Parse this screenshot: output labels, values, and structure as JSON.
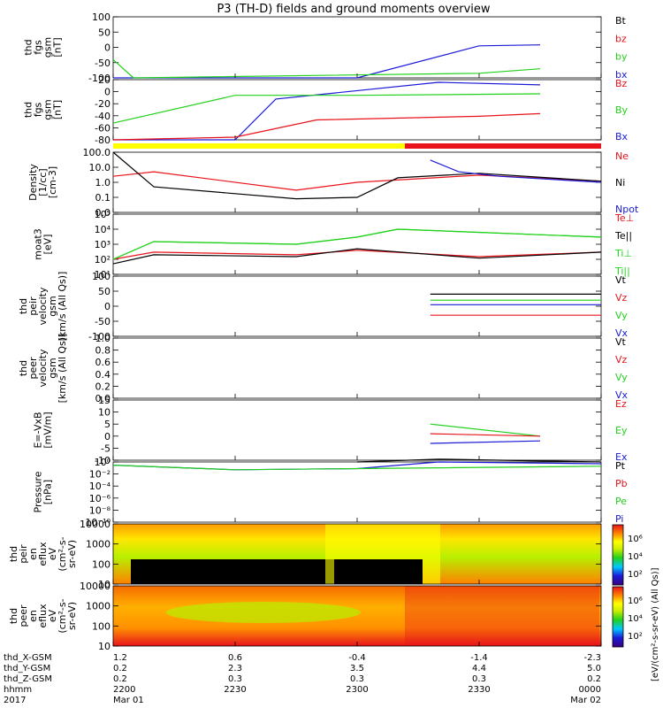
{
  "title": "P3 (TH-D) fields and ground moments overview",
  "colors": {
    "black": "#000000",
    "red": "#e8131b",
    "green": "#22d11c",
    "blue": "#1a1ad8",
    "yellow": "#ffff00"
  },
  "panels": [
    {
      "id": "fgs-gsm",
      "ylabel": [
        "thd",
        "fgs",
        "gsm",
        "[nT]"
      ],
      "ticks": [
        "100",
        "50",
        "0",
        "-50",
        "-100"
      ],
      "legend": [
        {
          "text": "Bt",
          "color": "black"
        },
        {
          "text": "bz",
          "color": "red"
        },
        {
          "text": "by",
          "color": "green"
        },
        {
          "text": "bx",
          "color": "blue"
        }
      ]
    },
    {
      "id": "fgs-dsl",
      "ylabel": [
        "thd",
        "fgs",
        "gsm",
        "[nT]"
      ],
      "ticks": [
        "20",
        "0",
        "-20",
        "-40",
        "-60",
        "-80"
      ],
      "legend": [
        {
          "text": "Bz",
          "color": "red"
        },
        {
          "text": "By",
          "color": "green"
        },
        {
          "text": "Bx",
          "color": "blue"
        }
      ]
    },
    {
      "id": "density",
      "ylabel": [
        "Density",
        "[1/cc]",
        "[cm-3]"
      ],
      "ticks": [
        "100.0",
        "10.0",
        "1.0",
        "0.1",
        "0.0"
      ],
      "legend": [
        {
          "text": "Ne",
          "color": "red"
        },
        {
          "text": "Ni",
          "color": "black"
        },
        {
          "text": "Npot",
          "color": "blue"
        }
      ]
    },
    {
      "id": "temperature",
      "ylabel": [
        "moat3",
        "[eV]"
      ],
      "ticks": [
        "10⁵",
        "10⁴",
        "10³",
        "10²",
        "10¹"
      ],
      "legend": [
        {
          "text": "Te⊥",
          "color": "red"
        },
        {
          "text": "Te||",
          "color": "black"
        },
        {
          "text": "Ti⊥",
          "color": "green"
        },
        {
          "text": "Ti||",
          "color": "green"
        }
      ]
    },
    {
      "id": "peir-velocity",
      "ylabel": [
        "thd",
        "peir",
        "velocity",
        "gsm",
        "[km/s (All Qs)]"
      ],
      "ticks": [
        "100",
        "50",
        "0",
        "-50",
        "-100"
      ],
      "legend": [
        {
          "text": "Vt",
          "color": "black"
        },
        {
          "text": "Vz",
          "color": "red"
        },
        {
          "text": "Vy",
          "color": "green"
        },
        {
          "text": "Vx",
          "color": "blue"
        }
      ]
    },
    {
      "id": "peer-velocity",
      "ylabel": [
        "thd",
        "peer",
        "velocity",
        "gsm",
        "[km/s (All Qs)]"
      ],
      "ticks": [
        "1.0",
        "0.8",
        "0.6",
        "0.4",
        "0.2",
        "0.0"
      ],
      "legend": [
        {
          "text": "Vt",
          "color": "black"
        },
        {
          "text": "Vz",
          "color": "red"
        },
        {
          "text": "Vy",
          "color": "green"
        },
        {
          "text": "Vx",
          "color": "blue"
        }
      ]
    },
    {
      "id": "efield",
      "ylabel": [
        "E=-VxB",
        "[mV/m]"
      ],
      "ticks": [
        "15",
        "10",
        "5",
        "0",
        "-5",
        "-10"
      ],
      "legend": [
        {
          "text": "Ez",
          "color": "red"
        },
        {
          "text": "Ey",
          "color": "green"
        },
        {
          "text": "Ex",
          "color": "blue"
        }
      ]
    },
    {
      "id": "pressure",
      "ylabel": [
        "Pressure",
        "[nPa]"
      ],
      "ticks": [
        "10⁰",
        "10⁻²",
        "10⁻⁴",
        "10⁻⁶",
        "10⁻⁸",
        "10⁻¹⁰"
      ],
      "legend": [
        {
          "text": "Pt",
          "color": "black"
        },
        {
          "text": "Pb",
          "color": "red"
        },
        {
          "text": "Pe",
          "color": "green"
        },
        {
          "text": "Pi",
          "color": "blue"
        }
      ]
    },
    {
      "id": "peir-spec",
      "ylabel": [
        "thd",
        "peir",
        "en",
        "eflux",
        "eV",
        "(cm²-s-",
        "sr-eV)"
      ],
      "ticks": [
        "10000",
        "1000",
        "100",
        "10"
      ],
      "legend": []
    },
    {
      "id": "peer-spec",
      "ylabel": [
        "thd",
        "peer",
        "en",
        "eflux",
        "eV",
        "(cm²-s-",
        "sr-eV)"
      ],
      "ticks": [
        "10000",
        "1000",
        "100",
        "10"
      ],
      "legend": []
    }
  ],
  "colorbar": {
    "label": "[eV/(cm²-s-sr-eV) (All Qs)]",
    "ticks_top": [
      "10⁶",
      "10⁴",
      "10²"
    ],
    "ticks_bottom": [
      "10⁶",
      "10⁴",
      "10²"
    ]
  },
  "footer": {
    "row_labels": [
      "thd_X-GSM",
      "thd_Y-GSM",
      "thd_Z-GSM",
      "hhmm",
      "2017"
    ],
    "columns": [
      {
        "values": [
          "1.2",
          "0.2",
          "0.2",
          "2200",
          "Mar 01"
        ]
      },
      {
        "values": [
          "0.6",
          "2.3",
          "0.3",
          "2230",
          ""
        ]
      },
      {
        "values": [
          "-0.4",
          "3.5",
          "0.3",
          "2300",
          ""
        ]
      },
      {
        "values": [
          "-1.4",
          "4.4",
          "0.3",
          "2330",
          ""
        ]
      },
      {
        "values": [
          "-2.3",
          "5.0",
          "0.2",
          "0000",
          "Mar 02"
        ]
      }
    ]
  },
  "chart_data": [
    {
      "type": "line",
      "title": "P3 (TH-D) fields and ground moments overview",
      "ylim": [
        -100,
        100
      ],
      "x": [
        "2200",
        "2230",
        "2300",
        "2330",
        "0000"
      ],
      "series": [
        {
          "name": "bx",
          "points": [
            [
              2200,
              -100
            ],
            [
              2300,
              -100
            ],
            [
              2330,
              5
            ],
            [
              2345,
              8
            ]
          ]
        },
        {
          "name": "by",
          "points": [
            [
              2200,
              -40
            ],
            [
              2205,
              -100
            ],
            [
              2330,
              -85
            ],
            [
              2345,
              -70
            ]
          ]
        }
      ]
    },
    {
      "type": "line",
      "ylim": [
        -90,
        25
      ],
      "series": [
        {
          "name": "Bx",
          "points": [
            [
              2200,
              -90
            ],
            [
              2230,
              -90
            ],
            [
              2240,
              -12
            ],
            [
              2320,
              20
            ],
            [
              2345,
              15
            ]
          ]
        },
        {
          "name": "By",
          "points": [
            [
              2200,
              -58
            ],
            [
              2230,
              -5
            ],
            [
              2300,
              -5
            ],
            [
              2345,
              -2
            ]
          ]
        },
        {
          "name": "Bz",
          "points": [
            [
              2200,
              -90
            ],
            [
              2230,
              -85
            ],
            [
              2250,
              -52
            ],
            [
              2330,
              -45
            ],
            [
              2345,
              -40
            ]
          ]
        }
      ]
    },
    {
      "type": "line",
      "yscale": "log",
      "ylim": [
        0.01,
        100
      ],
      "series": [
        {
          "name": "Ne",
          "points": [
            [
              2200,
              2.5
            ],
            [
              2210,
              5
            ],
            [
              2245,
              0.3
            ],
            [
              2300,
              1
            ],
            [
              2330,
              3
            ],
            [
              2400,
              1.2
            ]
          ]
        },
        {
          "name": "Ni",
          "points": [
            [
              2200,
              100
            ],
            [
              2210,
              0.5
            ],
            [
              2245,
              0.08
            ],
            [
              2300,
              0.1
            ],
            [
              2310,
              2
            ],
            [
              2330,
              4
            ],
            [
              2400,
              1.2
            ]
          ]
        },
        {
          "name": "Npot",
          "points": [
            [
              2318,
              30
            ],
            [
              2325,
              5
            ],
            [
              2335,
              2.5
            ],
            [
              2400,
              1
            ]
          ]
        }
      ]
    },
    {
      "type": "line",
      "yscale": "log",
      "ylim": [
        10,
        100000
      ],
      "series": [
        {
          "name": "Te⊥",
          "points": [
            [
              2200,
              100
            ],
            [
              2210,
              300
            ],
            [
              2245,
              200
            ],
            [
              2300,
              400
            ],
            [
              2330,
              150
            ],
            [
              2400,
              300
            ]
          ]
        },
        {
          "name": "Te||",
          "points": [
            [
              2200,
              50
            ],
            [
              2210,
              200
            ],
            [
              2245,
              150
            ],
            [
              2300,
              500
            ],
            [
              2330,
              120
            ],
            [
              2400,
              300
            ]
          ]
        },
        {
          "name": "Ti⊥",
          "points": [
            [
              2200,
              100
            ],
            [
              2210,
              1500
            ],
            [
              2245,
              1000
            ],
            [
              2300,
              3000
            ],
            [
              2310,
              10000
            ],
            [
              2400,
              3000
            ]
          ]
        },
        {
          "name": "Ti||",
          "points": [
            [
              2200,
              100
            ],
            [
              2210,
              1500
            ],
            [
              2245,
              1000
            ],
            [
              2300,
              3000
            ],
            [
              2310,
              10000
            ],
            [
              2400,
              3000
            ]
          ]
        }
      ]
    },
    {
      "type": "line",
      "ylim": [
        -100,
        100
      ],
      "series": [
        {
          "name": "Vt",
          "points": [
            [
              2318,
              40
            ],
            [
              2400,
              40
            ]
          ]
        },
        {
          "name": "Vy",
          "points": [
            [
              2318,
              20
            ],
            [
              2400,
              20
            ]
          ]
        },
        {
          "name": "Vx",
          "points": [
            [
              2318,
              5
            ],
            [
              2400,
              5
            ]
          ]
        },
        {
          "name": "Vz",
          "points": [
            [
              2318,
              -30
            ],
            [
              2400,
              -30
            ]
          ]
        }
      ]
    },
    {
      "type": "line",
      "ylim": [
        0,
        1
      ],
      "series": []
    },
    {
      "type": "line",
      "ylim": [
        -10,
        15
      ],
      "series": [
        {
          "name": "Ey",
          "points": [
            [
              2318,
              5
            ],
            [
              2345,
              0
            ]
          ]
        },
        {
          "name": "Ez",
          "points": [
            [
              2318,
              1
            ],
            [
              2345,
              0
            ]
          ]
        },
        {
          "name": "Ex",
          "points": [
            [
              2318,
              -3
            ],
            [
              2345,
              -2
            ]
          ]
        }
      ]
    },
    {
      "type": "line",
      "yscale": "log",
      "ylim": [
        1e-10,
        1
      ],
      "series": [
        {
          "name": "Pt",
          "points": [
            [
              2300,
              1
            ],
            [
              2320,
              3
            ],
            [
              2400,
              1
            ]
          ]
        },
        {
          "name": "Pi",
          "points": [
            [
              2200,
              0.3
            ],
            [
              2230,
              0.05
            ],
            [
              2300,
              0.08
            ],
            [
              2320,
              1
            ],
            [
              2400,
              0.5
            ]
          ]
        },
        {
          "name": "Pe",
          "points": [
            [
              2200,
              0.3
            ],
            [
              2230,
              0.05
            ],
            [
              2300,
              0.08
            ],
            [
              2400,
              0.2
            ]
          ]
        }
      ]
    },
    {
      "type": "heatmap",
      "ylim": [
        5,
        30000
      ],
      "yscale": "log"
    },
    {
      "type": "heatmap",
      "ylim": [
        5,
        30000
      ],
      "yscale": "log"
    }
  ]
}
